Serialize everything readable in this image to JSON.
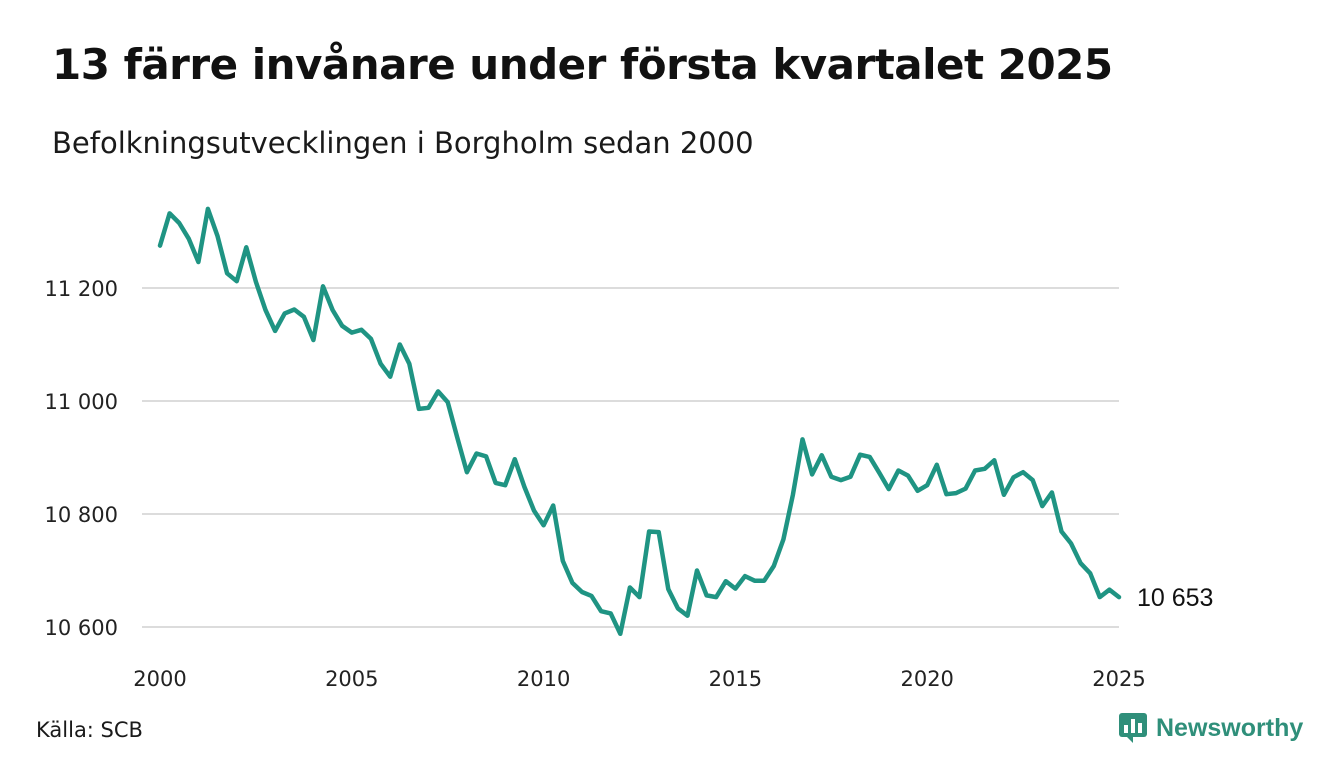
{
  "header": {
    "title": "13 färre invånare under första kvartalet 2025",
    "subtitle": "Befolkningsutvecklingen i Borgholm sedan 2000"
  },
  "footer": {
    "source": "Källa: SCB",
    "brand": "Newsworthy",
    "brand_icon": "bar-chart-icon",
    "brand_color": "#2f8f7a"
  },
  "chart_data": {
    "type": "line",
    "title": "13 färre invånare under första kvartalet 2025",
    "subtitle": "Befolkningsutvecklingen i Borgholm sedan 2000",
    "xlabel": "",
    "ylabel": "",
    "x_ticks": [
      "2000",
      "2005",
      "2010",
      "2015",
      "2020",
      "2025"
    ],
    "y_ticks": [
      "10 600",
      "10 800",
      "11 000",
      "11 200"
    ],
    "xlim": [
      2000,
      2025.25
    ],
    "ylim": [
      10580,
      11350
    ],
    "grid": "horizontal",
    "line_color": "#1f9483",
    "end_label": "10 653",
    "series": [
      {
        "x_start": 2000.0,
        "x_step": 0.25,
        "values": [
          11275,
          11332,
          11315,
          11287,
          11246,
          11340,
          11292,
          11226,
          11212,
          11272,
          11211,
          11161,
          11124,
          11155,
          11162,
          11149,
          11108,
          11203,
          11161,
          11133,
          11121,
          11126,
          11110,
          11066,
          11043,
          11100,
          11066,
          10986,
          10988,
          11017,
          10998,
          10935,
          10874,
          10907,
          10902,
          10855,
          10851,
          10897,
          10848,
          10806,
          10780,
          10815,
          10717,
          10678,
          10662,
          10655,
          10628,
          10624,
          10588,
          10670,
          10653,
          10769,
          10768,
          10667,
          10633,
          10620,
          10700,
          10656,
          10653,
          10681,
          10668,
          10690,
          10682,
          10682,
          10708,
          10755,
          10834,
          10932,
          10870,
          10904,
          10866,
          10860,
          10866,
          10905,
          10901,
          10873,
          10844,
          10877,
          10868,
          10841,
          10851,
          10887,
          10835,
          10837,
          10845,
          10877,
          10880,
          10895,
          10834,
          10865,
          10874,
          10860,
          10814,
          10838,
          10769,
          10748,
          10713,
          10695,
          10653,
          10666,
          10653
        ]
      }
    ]
  }
}
